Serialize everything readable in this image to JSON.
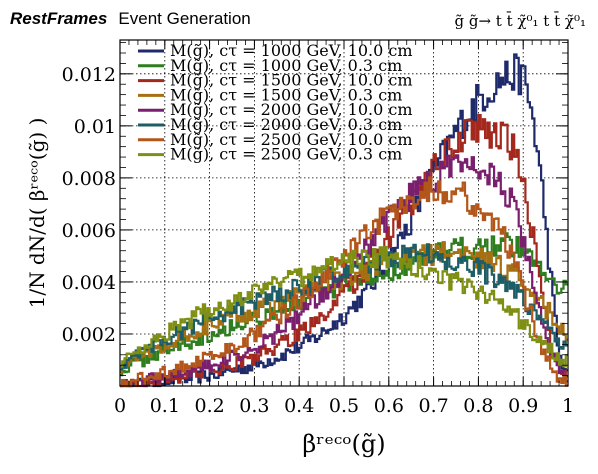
{
  "header": {
    "brand": "RestFrames",
    "subtitle": "Event Generation",
    "process": "g̃ g̃→ t t̄ χ̃⁰₁ t t̄ χ̃⁰₁"
  },
  "chart_data": {
    "type": "line",
    "style": "histogram",
    "xlabel": "βʳᵉᶜᵒ(g̃)",
    "ylabel": "1/N dN/d( βʳᵉᶜᵒ(g̃) )",
    "xlim": [
      0,
      1
    ],
    "ylim": [
      0,
      0.0133
    ],
    "xticks": [
      "0",
      "0.1",
      "0.2",
      "0.3",
      "0.4",
      "0.5",
      "0.6",
      "0.7",
      "0.8",
      "0.9",
      "1"
    ],
    "yticks": [
      "0.002",
      "0.004",
      "0.006",
      "0.008",
      "0.01",
      "0.012"
    ],
    "grid": true,
    "legend_position": "top-left",
    "x": [
      0,
      0.05,
      0.1,
      0.15,
      0.2,
      0.25,
      0.3,
      0.35,
      0.4,
      0.45,
      0.5,
      0.55,
      0.6,
      0.65,
      0.7,
      0.75,
      0.8,
      0.85,
      0.88,
      0.9,
      0.92,
      0.94,
      0.96,
      0.98,
      1.0
    ],
    "series": [
      {
        "name": "M(g̃), cτ = 1000 GeV, 10.0 cm",
        "color": "#1f2a6b",
        "values": [
          0,
          0.0001,
          0.0002,
          0.0003,
          0.0004,
          0.0006,
          0.0008,
          0.0011,
          0.0015,
          0.002,
          0.0027,
          0.0036,
          0.0048,
          0.0064,
          0.0082,
          0.0098,
          0.011,
          0.0118,
          0.012,
          0.0119,
          0.0105,
          0.008,
          0.0045,
          0.0012,
          0.0003
        ]
      },
      {
        "name": "M(g̃), cτ = 1000 GeV, 0.3 cm",
        "color": "#2e7d1e",
        "values": [
          0.0006,
          0.001,
          0.0014,
          0.0017,
          0.002,
          0.0023,
          0.0026,
          0.0029,
          0.0032,
          0.0035,
          0.0038,
          0.0041,
          0.0044,
          0.0047,
          0.005,
          0.0052,
          0.0054,
          0.0055,
          0.0054,
          0.0052,
          0.0049,
          0.0046,
          0.0042,
          0.0039,
          0.0038
        ]
      },
      {
        "name": "M(g̃), cτ = 1500 GeV, 10.0 cm",
        "color": "#a3281e",
        "values": [
          0,
          0.0001,
          0.0003,
          0.0004,
          0.0006,
          0.0008,
          0.0011,
          0.0015,
          0.002,
          0.0027,
          0.0035,
          0.0045,
          0.0057,
          0.007,
          0.0083,
          0.0094,
          0.0099,
          0.0097,
          0.009,
          0.0078,
          0.006,
          0.0038,
          0.0018,
          0.0006,
          0.0002
        ]
      },
      {
        "name": "M(g̃), cτ = 1500 GeV, 0.3 cm",
        "color": "#a66f12",
        "values": [
          0.0007,
          0.0012,
          0.0016,
          0.002,
          0.0023,
          0.0026,
          0.0029,
          0.0032,
          0.0035,
          0.0038,
          0.0041,
          0.0044,
          0.0047,
          0.005,
          0.0051,
          0.0051,
          0.0049,
          0.0046,
          0.0043,
          0.004,
          0.0036,
          0.0032,
          0.0028,
          0.0024,
          0.002
        ]
      },
      {
        "name": "M(g̃), cτ = 2000 GeV, 10.0 cm",
        "color": "#7a1f6e",
        "values": [
          0,
          0.0002,
          0.0004,
          0.0006,
          0.0008,
          0.0011,
          0.0015,
          0.002,
          0.0027,
          0.0035,
          0.0044,
          0.0054,
          0.0064,
          0.0073,
          0.008,
          0.0084,
          0.0084,
          0.0078,
          0.0068,
          0.0056,
          0.0042,
          0.0027,
          0.0014,
          0.0005,
          0.0002
        ]
      },
      {
        "name": "M(g̃), cτ = 2000 GeV, 0.3 cm",
        "color": "#1d5e66",
        "values": [
          0.0008,
          0.0013,
          0.0018,
          0.0022,
          0.0026,
          0.0029,
          0.0032,
          0.0035,
          0.0038,
          0.0041,
          0.0044,
          0.0047,
          0.0049,
          0.005,
          0.005,
          0.0048,
          0.0045,
          0.0041,
          0.0037,
          0.0033,
          0.0029,
          0.0025,
          0.0021,
          0.0018,
          0.0015
        ]
      },
      {
        "name": "M(g̃), cτ = 2500 GeV, 10.0 cm",
        "color": "#b3561a",
        "values": [
          0,
          0.0003,
          0.0005,
          0.0008,
          0.0011,
          0.0015,
          0.002,
          0.0026,
          0.0033,
          0.0041,
          0.005,
          0.0059,
          0.0067,
          0.0073,
          0.0076,
          0.0075,
          0.0069,
          0.0059,
          0.0048,
          0.0037,
          0.0026,
          0.0016,
          0.0008,
          0.0003,
          0.0001
        ]
      },
      {
        "name": "M(g̃), cτ = 2500 GeV, 0.3 cm",
        "color": "#7f8f14",
        "values": [
          0.0009,
          0.0015,
          0.002,
          0.0025,
          0.0029,
          0.0032,
          0.0036,
          0.0039,
          0.0042,
          0.0045,
          0.0047,
          0.0049,
          0.0049,
          0.0047,
          0.0044,
          0.004,
          0.0036,
          0.0032,
          0.0028,
          0.0024,
          0.002,
          0.0017,
          0.0014,
          0.0011,
          0.0009
        ]
      }
    ]
  }
}
